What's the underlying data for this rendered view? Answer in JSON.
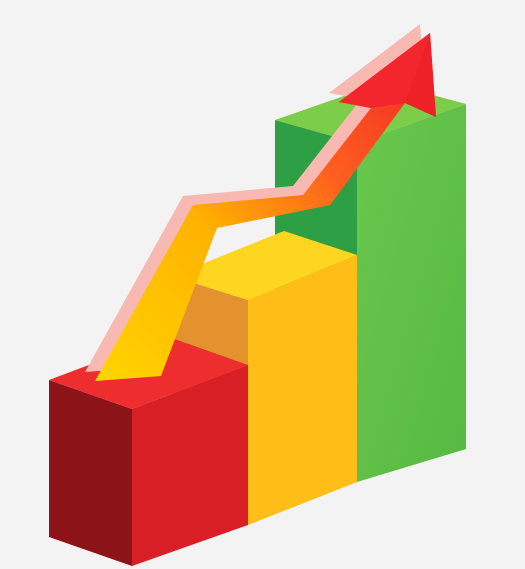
{
  "illustration": {
    "icon": "growth-chart-icon",
    "background": "#f3f3f3",
    "bars": [
      {
        "name": "red-block",
        "level": 1,
        "front": "#d81f25",
        "side": "#8c1318",
        "top": "#ee2d2f"
      },
      {
        "name": "yellow-block",
        "level": 2,
        "front": "#ffbe17",
        "side": "#e3922e",
        "top": "#ffd61f"
      },
      {
        "name": "green-block",
        "level": 3,
        "front": "#63c14b",
        "side": "#2f9f45",
        "top": "#7ccd49"
      }
    ],
    "arrow": {
      "icon": "up-trend-arrow-icon",
      "colors": [
        "#ffd400",
        "#ff9b16",
        "#ff5a1e",
        "#ee2127"
      ],
      "outline": "#f7b9b2"
    }
  }
}
